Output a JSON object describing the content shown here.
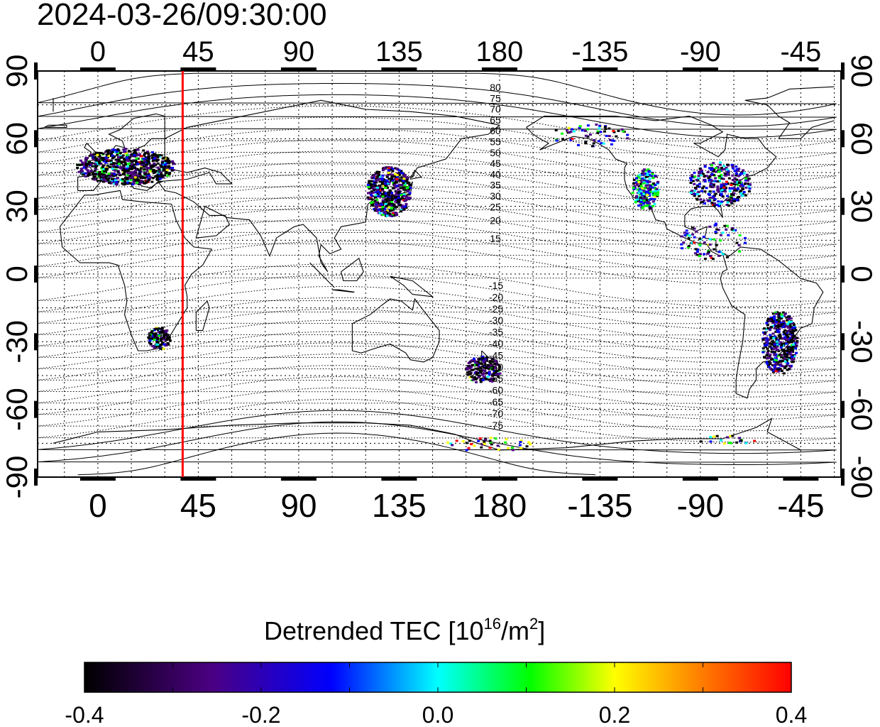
{
  "header": {
    "timestamp": "2024-03-26/09:30:00"
  },
  "map": {
    "lon_ticks": [
      "0",
      "45",
      "90",
      "135",
      "180",
      "-135",
      "-90",
      "-45"
    ],
    "lat_ticks_left": [
      "90",
      "60",
      "30",
      "0",
      "-30",
      "-60",
      "-90"
    ],
    "lat_ticks_right": [
      "90",
      "60",
      "30",
      "0",
      "-30",
      "-60",
      "-90"
    ],
    "contour_labels_north": [
      "80",
      "75",
      "70",
      "65",
      "60",
      "55",
      "50",
      "45",
      "40",
      "35",
      "30",
      "25",
      "20",
      "15"
    ],
    "contour_labels_south": [
      "-15",
      "-20",
      "-25",
      "-30",
      "-35",
      "-40",
      "-45",
      "-50",
      "-55",
      "-60",
      "-65",
      "-70",
      "-75"
    ],
    "marker_line_color": "#ff0000",
    "marker_line_lon": 38
  },
  "colorbar": {
    "title_prefix": "Detrended TEC  [10",
    "title_exp": "16",
    "title_mid": "/m",
    "title_exp2": "2",
    "title_suffix": "]",
    "ticks": [
      "-0.4",
      "-0.2",
      "0.0",
      "0.2",
      "0.4"
    ],
    "colors": [
      "#000000",
      "#4b0082",
      "#0000ff",
      "#00ffff",
      "#00ff00",
      "#ffff00",
      "#ff0000"
    ]
  },
  "data_clusters": [
    {
      "region": "Europe",
      "lon": 12,
      "lat": 48,
      "dominant": "dark"
    },
    {
      "region": "East Asia",
      "lon": 130,
      "lat": 38,
      "dominant": "dark-blue"
    },
    {
      "region": "North America West",
      "lon": -118,
      "lat": 38,
      "dominant": "blue-green"
    },
    {
      "region": "North America East",
      "lon": -80,
      "lat": 42,
      "dominant": "blue"
    },
    {
      "region": "South America",
      "lon": -55,
      "lat": -30,
      "dominant": "dark-blue"
    },
    {
      "region": "New Zealand",
      "lon": 172,
      "lat": -42,
      "dominant": "dark"
    },
    {
      "region": "South Africa",
      "lon": 27,
      "lat": -28,
      "dominant": "dark"
    }
  ]
}
